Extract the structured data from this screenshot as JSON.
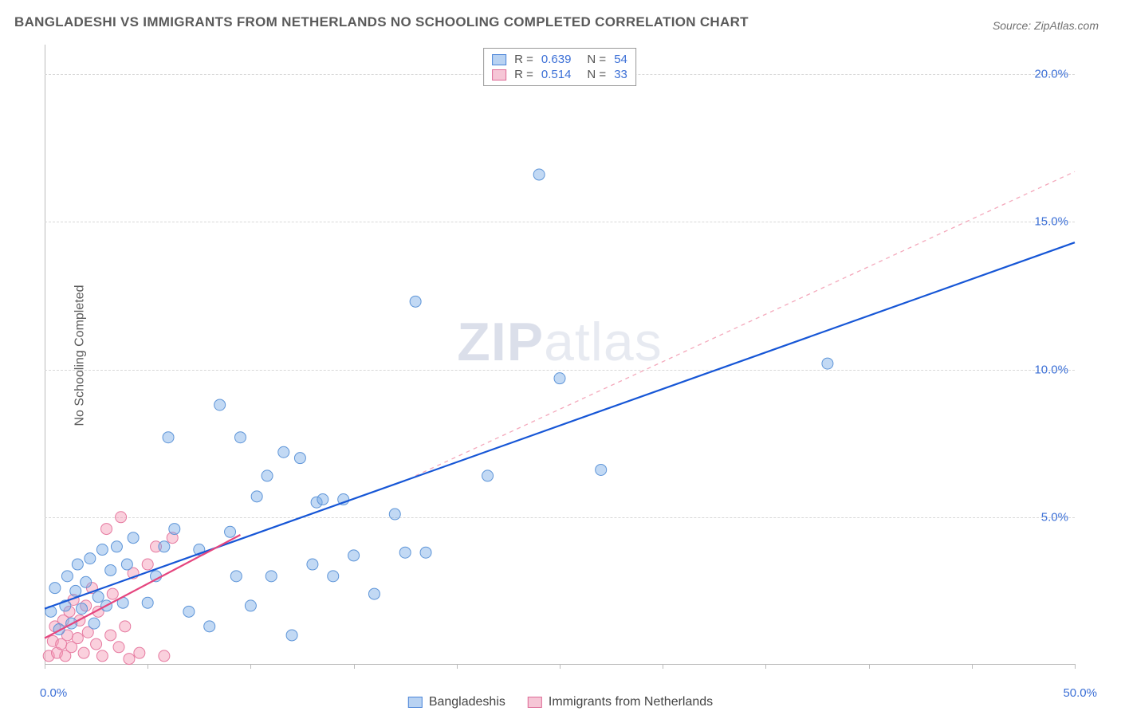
{
  "title": "BANGLADESHI VS IMMIGRANTS FROM NETHERLANDS NO SCHOOLING COMPLETED CORRELATION CHART",
  "source": "Source: ZipAtlas.com",
  "ylabel": "No Schooling Completed",
  "watermark_plain": "ZIP",
  "watermark_light": "atlas",
  "chart": {
    "type": "scatter",
    "background_color": "#ffffff",
    "grid_color": "#d8d8d8",
    "axis_color": "#bbbbbb",
    "tick_label_color": "#3b6fd6",
    "xlim": [
      0,
      50
    ],
    "ylim": [
      0,
      21
    ],
    "x_ticks": [
      0,
      5,
      10,
      15,
      20,
      25,
      30,
      35,
      40,
      45,
      50
    ],
    "y_gridlines": [
      5,
      10,
      15,
      20
    ],
    "y_tick_labels": [
      "5.0%",
      "10.0%",
      "15.0%",
      "20.0%"
    ],
    "x_origin_label": "0.0%",
    "x_end_label": "50.0%",
    "marker_radius": 7,
    "marker_stroke_width": 1,
    "series": [
      {
        "name": "Bangladeshis",
        "color_fill": "rgba(120,170,230,0.45)",
        "color_stroke": "#5e95d8",
        "swatch_fill": "#b8d2f2",
        "swatch_border": "#4b85d8",
        "r_value": "0.639",
        "n_value": "54",
        "trend": {
          "x1": 0,
          "y1": 1.9,
          "x2": 50,
          "y2": 14.3,
          "color": "#1656d6",
          "width": 2.2,
          "dash": "none"
        },
        "projection": {
          "x1": 18,
          "y1": 6.4,
          "x2": 50,
          "y2": 16.7,
          "color": "#f4a8bb",
          "width": 1.3,
          "dash": "5,5"
        },
        "points": [
          [
            0.3,
            1.8
          ],
          [
            0.5,
            2.6
          ],
          [
            0.7,
            1.2
          ],
          [
            1.0,
            2.0
          ],
          [
            1.1,
            3.0
          ],
          [
            1.3,
            1.4
          ],
          [
            1.5,
            2.5
          ],
          [
            1.6,
            3.4
          ],
          [
            1.8,
            1.9
          ],
          [
            2.0,
            2.8
          ],
          [
            2.2,
            3.6
          ],
          [
            2.4,
            1.4
          ],
          [
            2.6,
            2.3
          ],
          [
            2.8,
            3.9
          ],
          [
            3.0,
            2.0
          ],
          [
            3.2,
            3.2
          ],
          [
            3.5,
            4.0
          ],
          [
            3.8,
            2.1
          ],
          [
            4.0,
            3.4
          ],
          [
            4.3,
            4.3
          ],
          [
            5.0,
            2.1
          ],
          [
            5.4,
            3.0
          ],
          [
            5.8,
            4.0
          ],
          [
            6.0,
            7.7
          ],
          [
            6.3,
            4.6
          ],
          [
            7.0,
            1.8
          ],
          [
            7.5,
            3.9
          ],
          [
            8.0,
            1.3
          ],
          [
            8.5,
            8.8
          ],
          [
            9.0,
            4.5
          ],
          [
            9.3,
            3.0
          ],
          [
            9.5,
            7.7
          ],
          [
            10.0,
            2.0
          ],
          [
            10.3,
            5.7
          ],
          [
            10.8,
            6.4
          ],
          [
            11.0,
            3.0
          ],
          [
            11.6,
            7.2
          ],
          [
            12.0,
            1.0
          ],
          [
            12.4,
            7.0
          ],
          [
            13.0,
            3.4
          ],
          [
            13.2,
            5.5
          ],
          [
            13.5,
            5.6
          ],
          [
            14.0,
            3.0
          ],
          [
            14.5,
            5.6
          ],
          [
            15.0,
            3.7
          ],
          [
            16.0,
            2.4
          ],
          [
            17.0,
            5.1
          ],
          [
            17.5,
            3.8
          ],
          [
            18.0,
            12.3
          ],
          [
            18.5,
            3.8
          ],
          [
            21.5,
            6.4
          ],
          [
            24.0,
            16.6
          ],
          [
            25.0,
            9.7
          ],
          [
            27.0,
            6.6
          ],
          [
            38.0,
            10.2
          ]
        ]
      },
      {
        "name": "Immigrants from Netherlands",
        "color_fill": "rgba(245,150,180,0.45)",
        "color_stroke": "#e67aa0",
        "swatch_fill": "#f6c6d6",
        "swatch_border": "#dd6b97",
        "r_value": "0.514",
        "n_value": "33",
        "trend": {
          "x1": 0,
          "y1": 0.9,
          "x2": 9.5,
          "y2": 4.4,
          "color": "#e5457e",
          "width": 2.2,
          "dash": "none"
        },
        "points": [
          [
            0.2,
            0.3
          ],
          [
            0.4,
            0.8
          ],
          [
            0.5,
            1.3
          ],
          [
            0.6,
            0.4
          ],
          [
            0.8,
            0.7
          ],
          [
            0.9,
            1.5
          ],
          [
            1.0,
            0.3
          ],
          [
            1.1,
            1.0
          ],
          [
            1.2,
            1.8
          ],
          [
            1.3,
            0.6
          ],
          [
            1.4,
            2.2
          ],
          [
            1.6,
            0.9
          ],
          [
            1.7,
            1.5
          ],
          [
            1.9,
            0.4
          ],
          [
            2.0,
            2.0
          ],
          [
            2.1,
            1.1
          ],
          [
            2.3,
            2.6
          ],
          [
            2.5,
            0.7
          ],
          [
            2.6,
            1.8
          ],
          [
            2.8,
            0.3
          ],
          [
            3.0,
            4.6
          ],
          [
            3.2,
            1.0
          ],
          [
            3.3,
            2.4
          ],
          [
            3.6,
            0.6
          ],
          [
            3.7,
            5.0
          ],
          [
            3.9,
            1.3
          ],
          [
            4.1,
            0.2
          ],
          [
            4.3,
            3.1
          ],
          [
            4.6,
            0.4
          ],
          [
            5.0,
            3.4
          ],
          [
            5.4,
            4.0
          ],
          [
            5.8,
            0.3
          ],
          [
            6.2,
            4.3
          ]
        ]
      }
    ]
  },
  "legend_bottom": {
    "items": [
      {
        "label": "Bangladeshis",
        "fill": "#b8d2f2",
        "border": "#4b85d8"
      },
      {
        "label": "Immigrants from Netherlands",
        "fill": "#f6c6d6",
        "border": "#dd6b97"
      }
    ]
  }
}
